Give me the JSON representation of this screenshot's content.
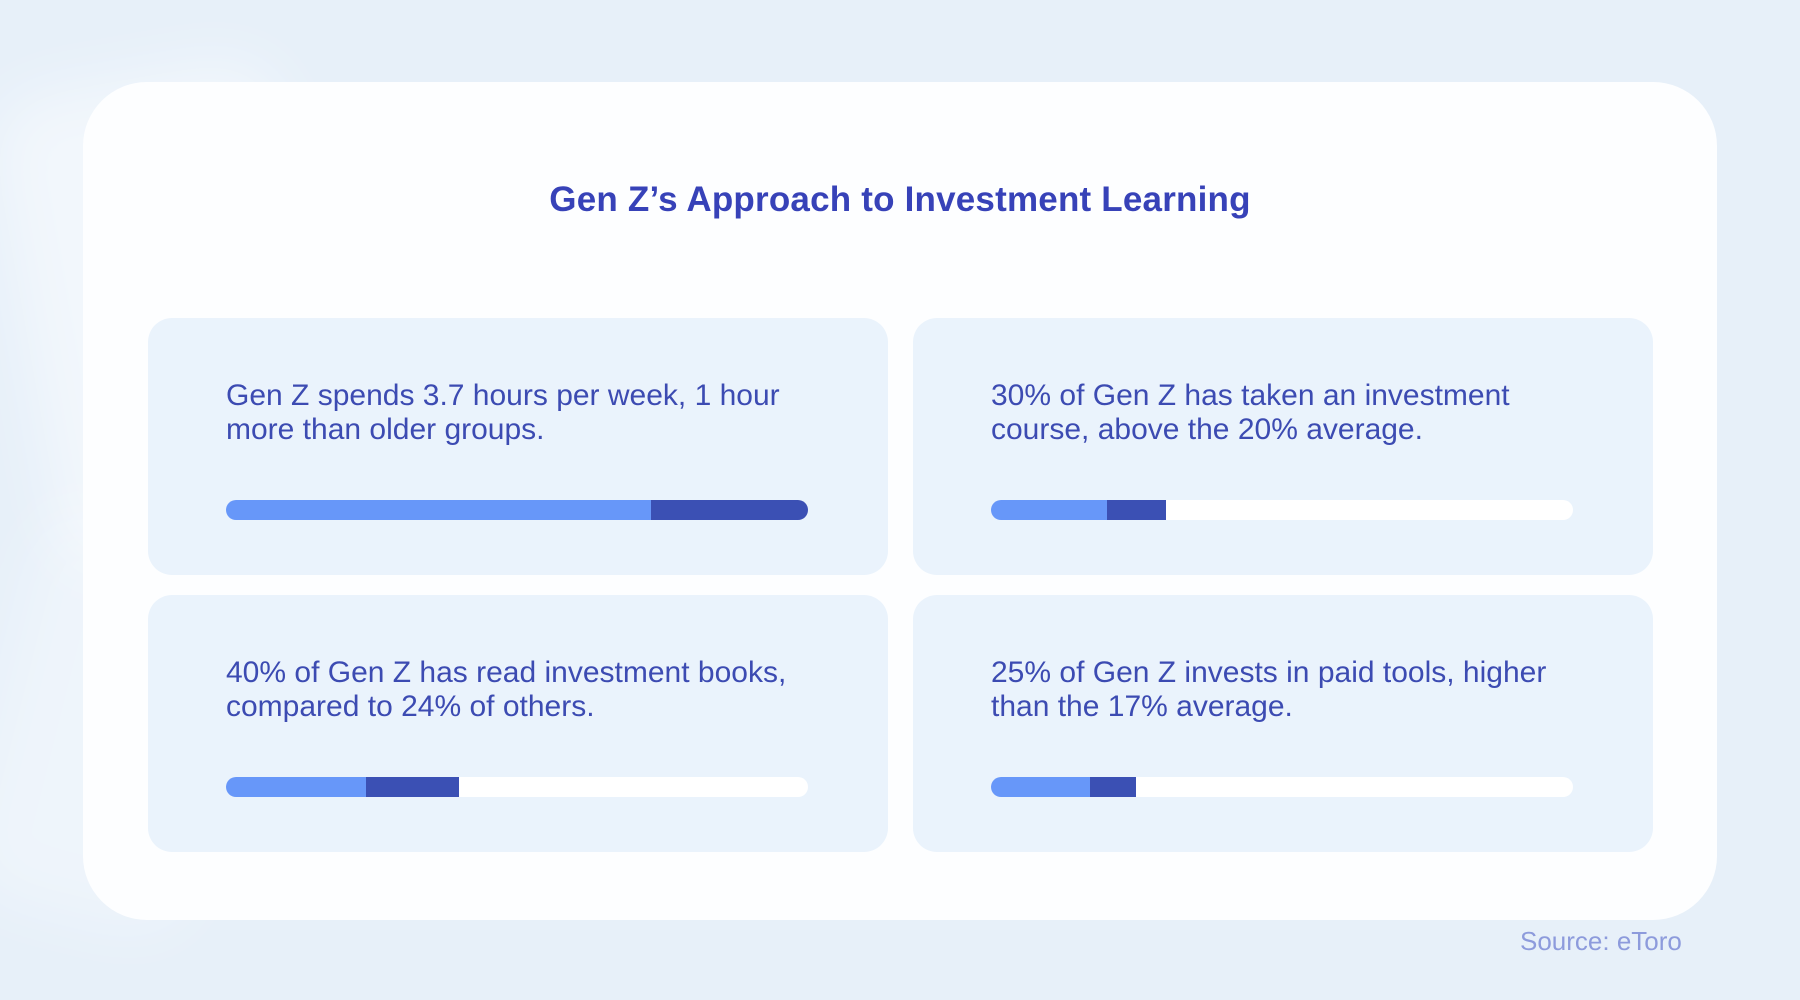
{
  "title": "Gen Z’s Approach to Investment Learning",
  "source": "Source: eToro",
  "colors": {
    "page_bg": "#e7f0f9",
    "panel_bg": "#fdfeff",
    "card_bg": "#eaf3fc",
    "track": "#ffffff",
    "bar_primary": "#6797f9",
    "bar_secondary": "#3b50b4",
    "heading": "#3742b8",
    "body_text": "#3c4bb2",
    "source_text": "#8d9bdc"
  },
  "chart_data": {
    "type": "bar",
    "title": "Gen Z’s Approach to Investment Learning",
    "source": "Source: eToro",
    "legend_position": "none",
    "grid": false,
    "items": [
      {
        "lines": [
          "Gen Z spends 3.7 hours per week, 1 hour",
          "more than older groups."
        ],
        "gen_z_value": 3.7,
        "comparison_value": 2.7,
        "unit": "hours per week",
        "bar": {
          "primary_pct": 73,
          "secondary_pct": 27
        }
      },
      {
        "lines": [
          "30% of Gen Z has taken an investment",
          "course, above the 20% average."
        ],
        "gen_z_value": 30,
        "comparison_value": 20,
        "unit": "%",
        "bar": {
          "primary_pct": 20,
          "secondary_pct": 10
        }
      },
      {
        "lines": [
          "40% of Gen Z has read investment books,",
          "compared to 24% of others."
        ],
        "gen_z_value": 40,
        "comparison_value": 24,
        "unit": "%",
        "bar": {
          "primary_pct": 24,
          "secondary_pct": 16
        }
      },
      {
        "lines": [
          "25% of Gen Z invests in paid tools, higher",
          "than the 17% average."
        ],
        "gen_z_value": 25,
        "comparison_value": 17,
        "unit": "%",
        "bar": {
          "primary_pct": 17,
          "secondary_pct": 8
        }
      }
    ]
  }
}
